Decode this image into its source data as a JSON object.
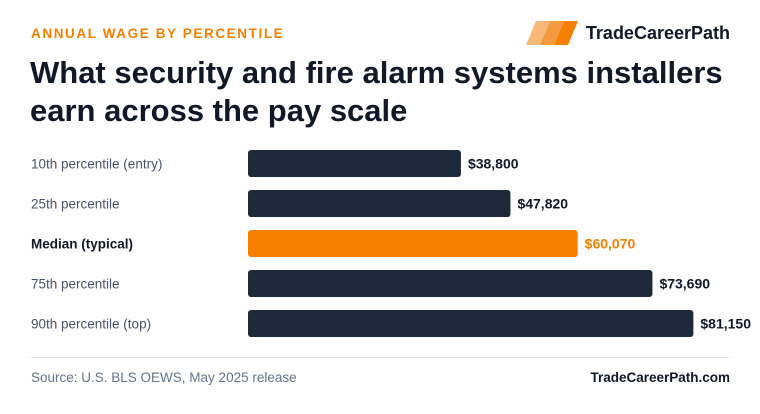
{
  "header": {
    "eyebrow": "ANNUAL WAGE BY PERCENTILE",
    "brand_name": "TradeCareerPath",
    "brand_icon": "slanted-stripes-logo",
    "title": "What security and fire alarm systems installers earn across the pay scale"
  },
  "colors": {
    "accent": "#f77f00",
    "bar": "#1e293b",
    "label": "#475569",
    "value": "#111827"
  },
  "chart_data": {
    "type": "bar",
    "orientation": "horizontal",
    "categories": [
      "10th percentile (entry)",
      "25th percentile",
      "Median (typical)",
      "75th percentile",
      "90th percentile (top)"
    ],
    "values": [
      38800,
      47820,
      60070,
      73690,
      81150
    ],
    "value_labels": [
      "$38,800",
      "$47,820",
      "$60,070",
      "$73,690",
      "$81,150"
    ],
    "highlight": "Median (typical)",
    "title": "",
    "xlabel": "",
    "ylabel": "",
    "xlim": [
      0,
      86000
    ],
    "grid": false,
    "legend": "none"
  },
  "footer": {
    "source": "Source: U.S. BLS OEWS, May 2025 release",
    "site": "TradeCareerPath.com"
  }
}
